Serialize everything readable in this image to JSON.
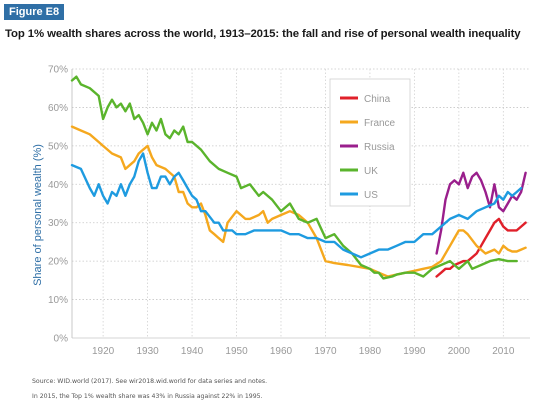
{
  "figure": {
    "badge": "Figure E8",
    "title": "Top 1% wealth shares across the world, 1913–2015: the fall and rise of personal wealth inequality",
    "source": "Source: WID.world (2017). See wir2018.wid.world for data series and notes.",
    "note": "In 2015, the Top 1% wealth share was 43% in Russia against 22% in 1995."
  },
  "chart_data": {
    "type": "line",
    "title": "Top 1% wealth shares across the world, 1913–2015: the fall and rise of personal wealth inequality",
    "ylabel": "Share of personal wealth (%)",
    "xlabel": "",
    "xlim": [
      1913,
      2016
    ],
    "ylim": [
      0,
      70
    ],
    "x_ticks": [
      "1920",
      "1930",
      "1940",
      "1950",
      "1960",
      "1970",
      "1980",
      "1990",
      "2000",
      "2010"
    ],
    "x_tick_values": [
      1920,
      1930,
      1940,
      1950,
      1960,
      1970,
      1980,
      1990,
      2000,
      2010
    ],
    "y_ticks": [
      "0%",
      "10%",
      "20%",
      "30%",
      "40%",
      "50%",
      "60%",
      "70%"
    ],
    "y_tick_values": [
      0,
      10,
      20,
      30,
      40,
      50,
      60,
      70
    ],
    "grid": true,
    "legend_position": "top-right",
    "series": [
      {
        "name": "China",
        "color": "#e0202a",
        "points": [
          [
            1995,
            16
          ],
          [
            1996,
            17
          ],
          [
            1997,
            18
          ],
          [
            1998,
            18
          ],
          [
            1999,
            19
          ],
          [
            2000,
            19.5
          ],
          [
            2001,
            20
          ],
          [
            2002,
            20
          ],
          [
            2003,
            21
          ],
          [
            2004,
            22
          ],
          [
            2005,
            24
          ],
          [
            2006,
            26
          ],
          [
            2007,
            28
          ],
          [
            2008,
            30
          ],
          [
            2009,
            31
          ],
          [
            2010,
            29
          ],
          [
            2011,
            28
          ],
          [
            2012,
            28
          ],
          [
            2013,
            28
          ],
          [
            2014,
            29
          ],
          [
            2015,
            30
          ]
        ]
      },
      {
        "name": "France",
        "color": "#f5a81e",
        "points": [
          [
            1913,
            55
          ],
          [
            1915,
            54
          ],
          [
            1917,
            53
          ],
          [
            1919,
            51
          ],
          [
            1920,
            50
          ],
          [
            1922,
            48
          ],
          [
            1924,
            47
          ],
          [
            1925,
            44
          ],
          [
            1927,
            46
          ],
          [
            1928,
            48
          ],
          [
            1929,
            49
          ],
          [
            1930,
            50
          ],
          [
            1931,
            47
          ],
          [
            1932,
            45
          ],
          [
            1934,
            44
          ],
          [
            1936,
            42
          ],
          [
            1937,
            38
          ],
          [
            1938,
            38
          ],
          [
            1939,
            35
          ],
          [
            1940,
            34
          ],
          [
            1941,
            34
          ],
          [
            1942,
            35
          ],
          [
            1943,
            32
          ],
          [
            1944,
            28
          ],
          [
            1945,
            27
          ],
          [
            1946,
            26
          ],
          [
            1947,
            25
          ],
          [
            1948,
            30
          ],
          [
            1950,
            33
          ],
          [
            1952,
            31
          ],
          [
            1953,
            31
          ],
          [
            1955,
            32
          ],
          [
            1956,
            33
          ],
          [
            1957,
            30
          ],
          [
            1958,
            31
          ],
          [
            1960,
            32
          ],
          [
            1962,
            33
          ],
          [
            1964,
            32
          ],
          [
            1966,
            30
          ],
          [
            1968,
            26
          ],
          [
            1970,
            20
          ],
          [
            1972,
            19.5
          ],
          [
            1975,
            19
          ],
          [
            1980,
            18
          ],
          [
            1982,
            17
          ],
          [
            1984,
            16
          ],
          [
            1986,
            16.5
          ],
          [
            1988,
            17
          ],
          [
            1990,
            17.5
          ],
          [
            1992,
            18
          ],
          [
            1994,
            18.5
          ],
          [
            1996,
            20
          ],
          [
            1998,
            24
          ],
          [
            1999,
            26
          ],
          [
            2000,
            28
          ],
          [
            2001,
            28
          ],
          [
            2002,
            27
          ],
          [
            2004,
            24
          ],
          [
            2006,
            22
          ],
          [
            2008,
            23
          ],
          [
            2009,
            22
          ],
          [
            2010,
            24
          ],
          [
            2011,
            23
          ],
          [
            2012,
            22.5
          ],
          [
            2013,
            22.5
          ],
          [
            2014,
            23
          ],
          [
            2015,
            23.5
          ]
        ]
      },
      {
        "name": "Russia",
        "color": "#9a1f8c",
        "points": [
          [
            1995,
            22
          ],
          [
            1996,
            28
          ],
          [
            1997,
            36
          ],
          [
            1998,
            40
          ],
          [
            1999,
            41
          ],
          [
            2000,
            40
          ],
          [
            2001,
            43
          ],
          [
            2002,
            39
          ],
          [
            2003,
            42
          ],
          [
            2004,
            43
          ],
          [
            2005,
            41
          ],
          [
            2006,
            38
          ],
          [
            2007,
            34
          ],
          [
            2008,
            40
          ],
          [
            2009,
            34
          ],
          [
            2010,
            33
          ],
          [
            2011,
            35
          ],
          [
            2012,
            37
          ],
          [
            2013,
            36
          ],
          [
            2014,
            38
          ],
          [
            2015,
            43
          ]
        ]
      },
      {
        "name": "UK",
        "color": "#5ab42c",
        "points": [
          [
            1913,
            67
          ],
          [
            1914,
            68
          ],
          [
            1915,
            66
          ],
          [
            1917,
            65
          ],
          [
            1919,
            63
          ],
          [
            1920,
            57
          ],
          [
            1921,
            60
          ],
          [
            1922,
            62
          ],
          [
            1923,
            60
          ],
          [
            1924,
            61
          ],
          [
            1925,
            59
          ],
          [
            1926,
            61
          ],
          [
            1927,
            57
          ],
          [
            1928,
            58
          ],
          [
            1929,
            56
          ],
          [
            1930,
            53
          ],
          [
            1931,
            56
          ],
          [
            1932,
            54
          ],
          [
            1933,
            57
          ],
          [
            1934,
            53
          ],
          [
            1935,
            52
          ],
          [
            1936,
            54
          ],
          [
            1937,
            53
          ],
          [
            1938,
            55
          ],
          [
            1939,
            51
          ],
          [
            1940,
            51
          ],
          [
            1942,
            49
          ],
          [
            1944,
            46
          ],
          [
            1946,
            44
          ],
          [
            1948,
            43
          ],
          [
            1950,
            42
          ],
          [
            1951,
            39
          ],
          [
            1953,
            40
          ],
          [
            1955,
            37
          ],
          [
            1956,
            38
          ],
          [
            1958,
            36
          ],
          [
            1960,
            33
          ],
          [
            1962,
            35
          ],
          [
            1964,
            31
          ],
          [
            1966,
            30
          ],
          [
            1968,
            31
          ],
          [
            1970,
            26
          ],
          [
            1972,
            27
          ],
          [
            1974,
            24
          ],
          [
            1976,
            22
          ],
          [
            1978,
            19
          ],
          [
            1980,
            18
          ],
          [
            1981,
            17
          ],
          [
            1982,
            17
          ],
          [
            1983,
            15.5
          ],
          [
            1985,
            16
          ],
          [
            1986,
            16.5
          ],
          [
            1988,
            17
          ],
          [
            1990,
            17
          ],
          [
            1992,
            16
          ],
          [
            1994,
            18
          ],
          [
            1996,
            19
          ],
          [
            1998,
            20
          ],
          [
            1999,
            19
          ],
          [
            2000,
            18
          ],
          [
            2001,
            19
          ],
          [
            2002,
            20
          ],
          [
            2003,
            18
          ],
          [
            2005,
            19
          ],
          [
            2007,
            20
          ],
          [
            2009,
            20.5
          ],
          [
            2011,
            20
          ],
          [
            2013,
            20
          ]
        ]
      },
      {
        "name": "US",
        "color": "#1e9be0",
        "points": [
          [
            1913,
            45
          ],
          [
            1915,
            44
          ],
          [
            1917,
            39
          ],
          [
            1918,
            37
          ],
          [
            1919,
            40
          ],
          [
            1920,
            37
          ],
          [
            1921,
            35
          ],
          [
            1922,
            38
          ],
          [
            1923,
            37
          ],
          [
            1924,
            40
          ],
          [
            1925,
            37
          ],
          [
            1926,
            40
          ],
          [
            1927,
            42
          ],
          [
            1928,
            46
          ],
          [
            1929,
            48
          ],
          [
            1930,
            43
          ],
          [
            1931,
            39
          ],
          [
            1932,
            39
          ],
          [
            1933,
            42
          ],
          [
            1934,
            42
          ],
          [
            1935,
            40
          ],
          [
            1936,
            42
          ],
          [
            1937,
            43
          ],
          [
            1938,
            41
          ],
          [
            1939,
            39
          ],
          [
            1940,
            37
          ],
          [
            1941,
            36
          ],
          [
            1942,
            33
          ],
          [
            1943,
            33
          ],
          [
            1945,
            30
          ],
          [
            1946,
            30
          ],
          [
            1947,
            28
          ],
          [
            1949,
            28
          ],
          [
            1950,
            27
          ],
          [
            1952,
            27
          ],
          [
            1954,
            28
          ],
          [
            1956,
            28
          ],
          [
            1958,
            28
          ],
          [
            1960,
            28
          ],
          [
            1962,
            27
          ],
          [
            1964,
            27
          ],
          [
            1966,
            26
          ],
          [
            1968,
            26
          ],
          [
            1970,
            25
          ],
          [
            1972,
            25
          ],
          [
            1974,
            23
          ],
          [
            1976,
            22
          ],
          [
            1978,
            21
          ],
          [
            1980,
            22
          ],
          [
            1982,
            23
          ],
          [
            1984,
            23
          ],
          [
            1986,
            24
          ],
          [
            1988,
            25
          ],
          [
            1990,
            25
          ],
          [
            1992,
            27
          ],
          [
            1994,
            27
          ],
          [
            1996,
            29
          ],
          [
            1998,
            31
          ],
          [
            2000,
            32
          ],
          [
            2002,
            31
          ],
          [
            2004,
            33
          ],
          [
            2006,
            34
          ],
          [
            2008,
            35
          ],
          [
            2009,
            37
          ],
          [
            2010,
            36
          ],
          [
            2011,
            38
          ],
          [
            2012,
            37
          ],
          [
            2013,
            38
          ],
          [
            2014,
            39
          ]
        ]
      }
    ]
  }
}
